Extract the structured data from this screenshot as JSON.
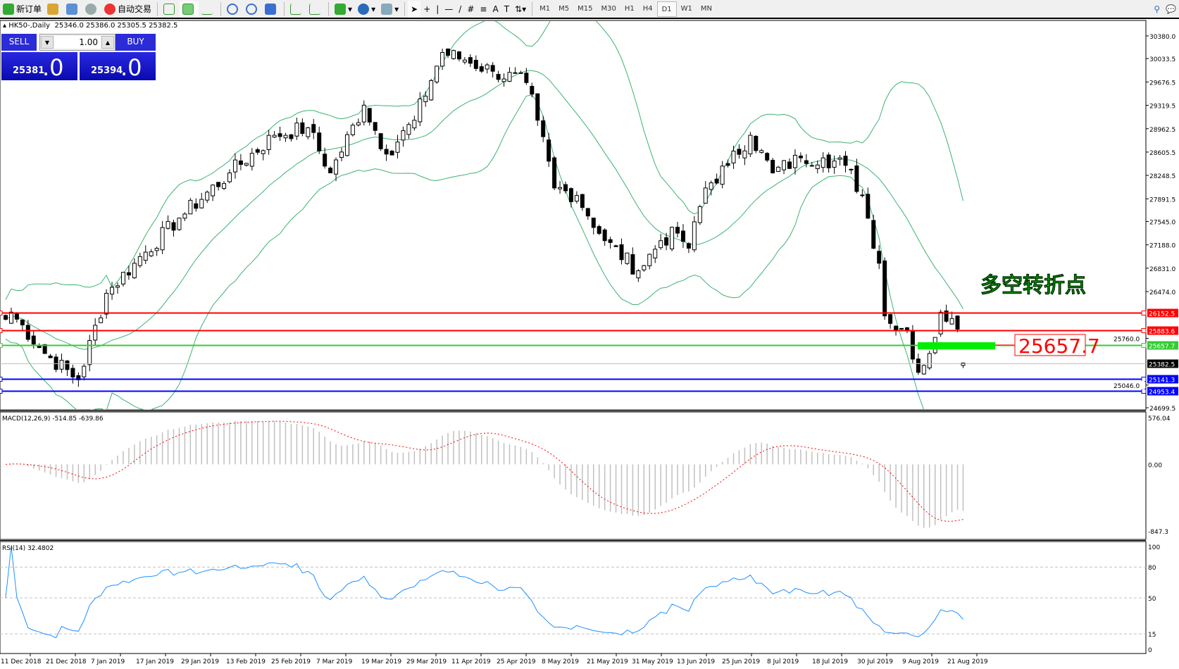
{
  "toolbar": {
    "new_order": "新订单",
    "auto_trading": "自动交易",
    "timeframes": [
      "M1",
      "M5",
      "M15",
      "M30",
      "H1",
      "H4",
      "D1",
      "W1",
      "MN"
    ],
    "active_timeframe": "D1"
  },
  "chart": {
    "title": "HK50-,Daily",
    "ohlc": "25346.0 25386.0 25305.5 25382.5",
    "annotation_text": "多空转折点",
    "annotation_color": "#00ee00",
    "price_label": "25657.7",
    "price_label_color": "#ff0000"
  },
  "trade_panel": {
    "sell_label": "SELL",
    "buy_label": "BUY",
    "lot": "1.00",
    "sell_price_main": "25381",
    "sell_price_frac": ".0",
    "buy_price_main": "25394",
    "buy_price_frac": ".0"
  },
  "chart_data": [
    {
      "type": "candlestick",
      "symbol": "HK50-",
      "timeframe": "Daily",
      "last_bar": {
        "open": 25346.0,
        "high": 25386.0,
        "low": 25305.5,
        "close": 25382.5
      },
      "close_path_approx": [
        [
          0,
          26050
        ],
        [
          1,
          26160
        ],
        [
          7,
          25528
        ],
        [
          13,
          25125
        ],
        [
          18,
          26448
        ],
        [
          23,
          26907
        ],
        [
          31,
          27597
        ],
        [
          40,
          28287
        ],
        [
          48,
          28862
        ],
        [
          54,
          28977
        ],
        [
          58,
          28287
        ],
        [
          64,
          29322
        ],
        [
          68,
          28575
        ],
        [
          73,
          29092
        ],
        [
          78,
          30127
        ],
        [
          82,
          30012
        ],
        [
          87,
          29840
        ],
        [
          93,
          29667
        ],
        [
          95,
          29092
        ],
        [
          98,
          28057
        ],
        [
          102,
          27942
        ],
        [
          107,
          27252
        ],
        [
          113,
          26792
        ],
        [
          117,
          27252
        ],
        [
          120,
          27367
        ],
        [
          122,
          27137
        ],
        [
          125,
          28057
        ],
        [
          129,
          28402
        ],
        [
          133,
          28862
        ],
        [
          137,
          28287
        ],
        [
          142,
          28517
        ],
        [
          146,
          28517
        ],
        [
          150,
          28402
        ],
        [
          153,
          27942
        ],
        [
          156,
          26907
        ],
        [
          157,
          26102
        ],
        [
          158,
          25987
        ],
        [
          161,
          25872
        ],
        [
          163,
          25240
        ],
        [
          165,
          25528
        ],
        [
          167,
          26160
        ],
        [
          170,
          25900
        ],
        [
          171,
          25382.5
        ]
      ],
      "ylim": [
        24699.5,
        30380.0
      ],
      "y_ticks": [
        "30380.0",
        "30033.5",
        "29676.5",
        "29319.5",
        "28962.5",
        "28605.5",
        "28248.5",
        "27891.5",
        "27545.0",
        "27188.0",
        "26831.0",
        "26474.0",
        "24699.5"
      ],
      "extra_axis_labels": [
        "25760.0",
        "25046.0"
      ],
      "x_tick_labels": [
        "11 Dec 2018",
        "21 Dec 2018",
        "7 Jan 2019",
        "17 Jan 2019",
        "29 Jan 2019",
        "13 Feb 2019",
        "25 Feb 2019",
        "7 Mar 2019",
        "19 Mar 2019",
        "29 Mar 2019",
        "11 Apr 2019",
        "25 Apr 2019",
        "8 May 2019",
        "21 May 2019",
        "31 May 2019",
        "13 Jun 2019",
        "25 Jun 2019",
        "8 Jul 2019",
        "18 Jul 2019",
        "30 Jul 2019",
        "9 Aug 2019",
        "21 Aug 2019"
      ],
      "indicator": "Bollinger Bands",
      "band_color": "#3cb371",
      "horizontal_lines": [
        {
          "price": "26152.5",
          "color": "#ff0000"
        },
        {
          "price": "25883.6",
          "color": "#ff0000"
        },
        {
          "price": "25657.7",
          "color": "#33cc33"
        },
        {
          "price": "25382.5",
          "color": "#000000",
          "kind": "bid"
        },
        {
          "price": "25141.3",
          "color": "#0000ff"
        },
        {
          "price": "24953.4",
          "color": "#0000ff"
        }
      ],
      "zone": {
        "price_top": 25700,
        "price_bottom": 25590,
        "color": "#00ee00"
      }
    },
    {
      "type": "bar",
      "title": "MACD(12,26,9) -514.85 -639.86",
      "ylim": [
        -847.3,
        576.04
      ],
      "y_ticks": [
        "576.04",
        "0.00",
        "-847.3"
      ],
      "main_color": "#c0c0c0",
      "signal_color": "#ff0000"
    },
    {
      "type": "line",
      "title": "RSI(14) 32.4802",
      "ylim": [
        0,
        100
      ],
      "y_ticks": [
        "100",
        "80",
        "50",
        "15",
        "0"
      ],
      "levels": [
        80,
        50,
        15
      ],
      "color": "#1e90ff"
    }
  ]
}
